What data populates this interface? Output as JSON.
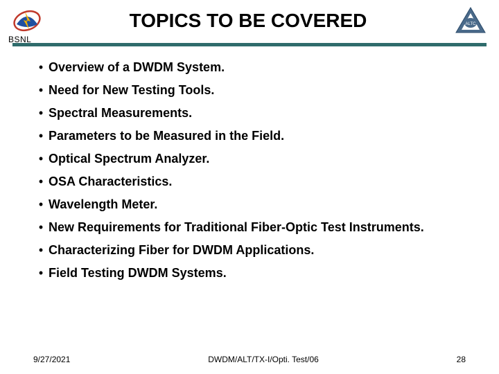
{
  "header": {
    "org_name": "BSNL",
    "title": "TOPICS TO BE COVERED"
  },
  "bullets": [
    "Overview of a DWDM System.",
    "Need for New Testing Tools.",
    "Spectral Measurements.",
    "Parameters to be Measured in the Field.",
    "Optical Spectrum Analyzer.",
    "OSA Characteristics.",
    "Wavelength Meter.",
    "New Requirements for Traditional Fiber-Optic Test Instruments.",
    "Characterizing Fiber for DWDM Applications.",
    "Field Testing DWDM Systems."
  ],
  "footer": {
    "date": "9/27/2021",
    "ref": "DWDM/ALT/TX-I/Opti. Test/06",
    "page": "28"
  },
  "colors": {
    "divider": "#2f6b6b",
    "text": "#000000",
    "background": "#ffffff"
  },
  "typography": {
    "title_fontsize": 28,
    "bullet_fontsize": 18,
    "footer_fontsize": 12,
    "font_family": "Arial"
  }
}
